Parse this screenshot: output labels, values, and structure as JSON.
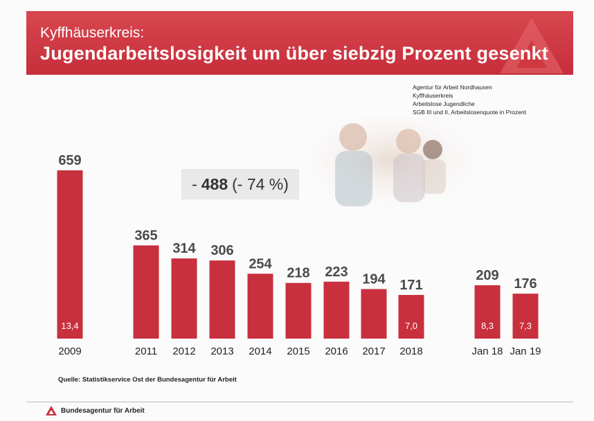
{
  "header": {
    "subtitle": "Kyffhäuserkreis:",
    "title": "Jugendarbeitslosigkeit um über siebzig Prozent gesenkt"
  },
  "meta": {
    "lines": [
      "Agentur für Arbeit Nordhausen",
      "Kyffhäuserkreis",
      "Arbeitslose Jugendliche",
      "SGB III und II, Arbeitslosenquote in Prozent"
    ]
  },
  "callout": {
    "prefix": "-",
    "value": "488",
    "suffix": "(- 74 %)"
  },
  "chart_data": {
    "type": "bar",
    "categories": [
      "2009",
      "2011",
      "2012",
      "2013",
      "2014",
      "2015",
      "2016",
      "2017",
      "2018",
      "Jan 18",
      "Jan 19"
    ],
    "series": [
      {
        "values": [
          659,
          365,
          314,
          306,
          254,
          218,
          223,
          194,
          171,
          209,
          176
        ]
      }
    ],
    "rates": [
      "13,4",
      "",
      "",
      "",
      "",
      "",
      "",
      "",
      "7,0",
      "8,3",
      "7,3"
    ],
    "value_labels": [
      "659",
      "365",
      "314",
      "306",
      "254",
      "218",
      "223",
      "194",
      "171",
      "209",
      "176"
    ],
    "grid": false,
    "legend": "none"
  },
  "source": "Quelle: Statistikservice Ost der Bundesagentur für Arbeit",
  "footer": {
    "brand": "Bundesagentur für Arbeit"
  },
  "colors": {
    "accent": "#c8303d",
    "banner": "#d0383f"
  }
}
